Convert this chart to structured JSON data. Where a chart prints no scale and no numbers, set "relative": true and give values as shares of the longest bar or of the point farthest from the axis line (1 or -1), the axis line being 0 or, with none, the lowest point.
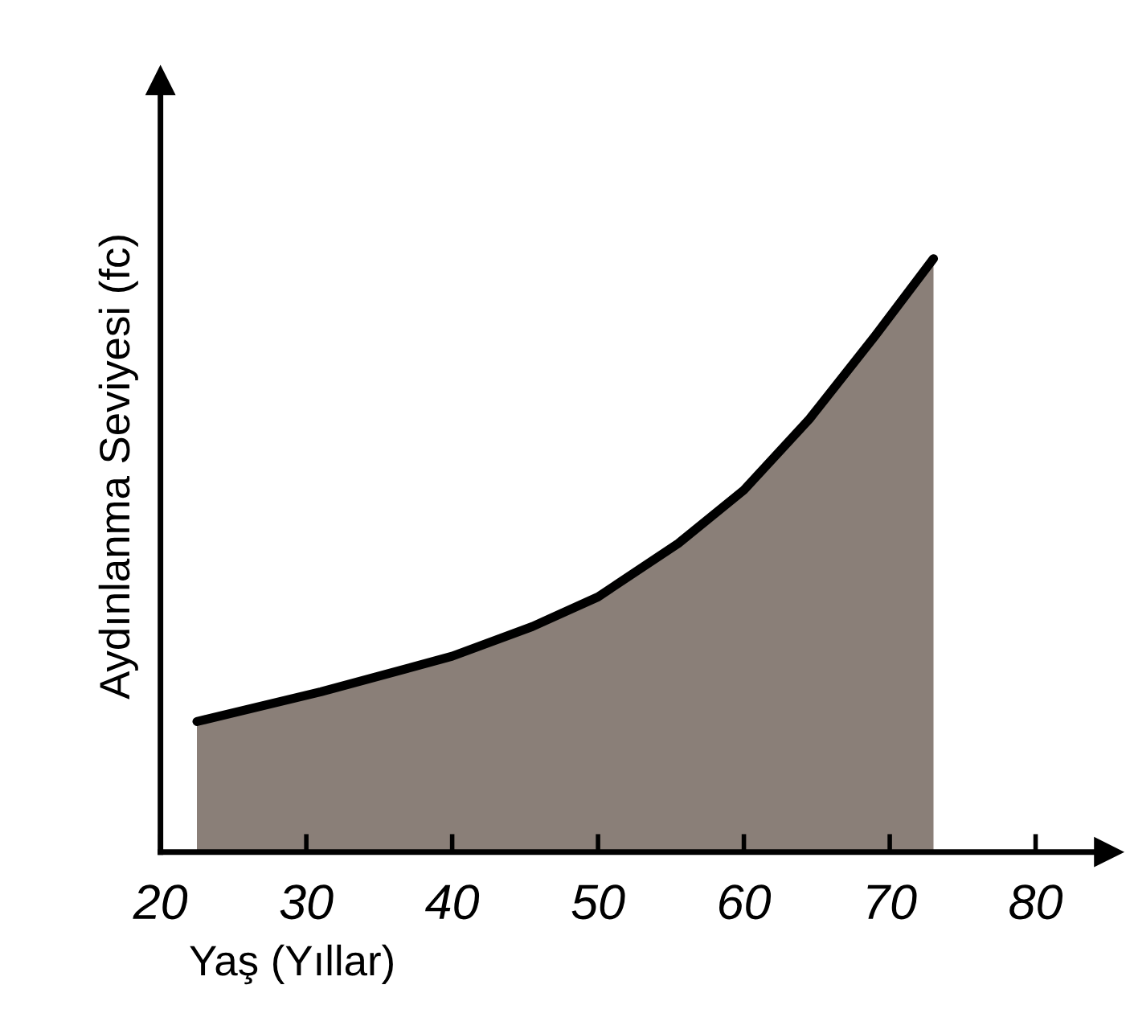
{
  "chart_data": {
    "type": "area",
    "relative": true,
    "xlabel": "Yaş (Yıllar)",
    "ylabel": "Aydınlanma Seviyesi (fc)",
    "xlim": [
      20,
      85
    ],
    "xticks": [
      20,
      30,
      40,
      50,
      60,
      70,
      80
    ],
    "grid": false,
    "legend": false,
    "series": [
      {
        "color": "#8a7f78",
        "x": [
          22.5,
          31,
          40,
          45.5,
          50,
          55.5,
          60,
          64.5,
          69,
          73
        ],
        "values": [
          0.22,
          0.27,
          0.33,
          0.38,
          0.43,
          0.52,
          0.61,
          0.73,
          0.87,
          1.0
        ]
      }
    ]
  }
}
